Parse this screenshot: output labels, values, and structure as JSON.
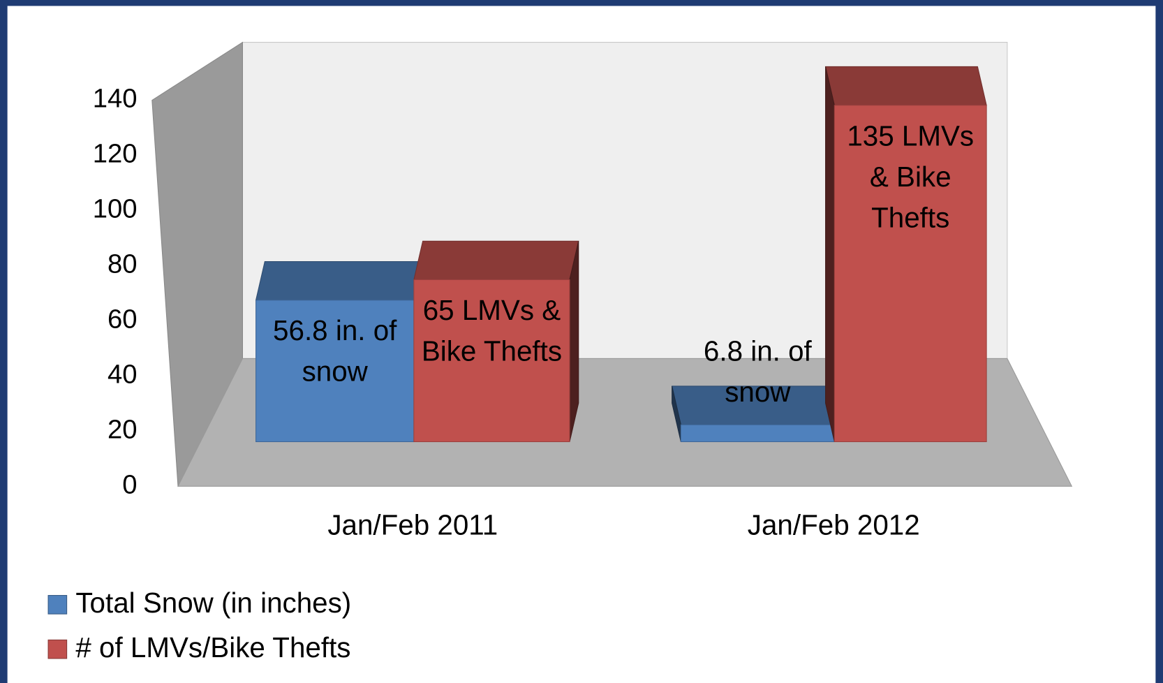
{
  "chart_data": {
    "type": "bar3d",
    "categories": [
      "Jan/Feb 2011",
      "Jan/Feb 2012"
    ],
    "series": [
      {
        "name": "Total Snow (in inches)",
        "color": "#4f81bd",
        "values": [
          56.8,
          6.8
        ],
        "value_labels": [
          "56.8 in. of snow",
          "6.8 in. of snow"
        ]
      },
      {
        "name": "# of LMVs/Bike Thefts",
        "color": "#c0504d",
        "values": [
          65,
          135
        ],
        "value_labels": [
          "65 LMVs & Bike Thefts",
          "135 LMVs & Bike Thefts"
        ]
      }
    ],
    "ylim": [
      0,
      140
    ],
    "yticks": [
      0,
      20,
      40,
      60,
      80,
      100,
      120,
      140
    ],
    "legend": "bottom-left"
  }
}
